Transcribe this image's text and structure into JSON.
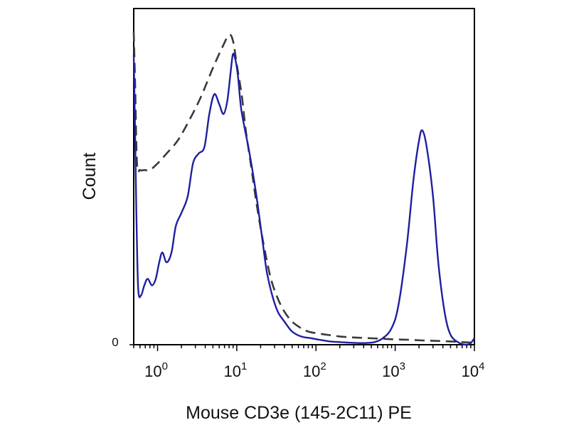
{
  "chart_data": {
    "type": "line",
    "title": "",
    "xlabel": "Mouse CD3e (145-2C11) PE",
    "ylabel": "Count",
    "x_scale": "log",
    "xlim": [
      0.5,
      10000
    ],
    "ylim": [
      0,
      1
    ],
    "grid": false,
    "legend": "none",
    "x_ticks": [
      {
        "value": 1,
        "base": "10",
        "exponent": "0"
      },
      {
        "value": 10,
        "base": "10",
        "exponent": "1"
      },
      {
        "value": 100,
        "base": "10",
        "exponent": "2"
      },
      {
        "value": 1000,
        "base": "10",
        "exponent": "3"
      },
      {
        "value": 10000,
        "base": "10",
        "exponent": "4"
      }
    ],
    "y_ticks": [
      {
        "value": 0,
        "label": "0"
      }
    ],
    "series": [
      {
        "style": "dashed",
        "color": "#3a3a3a",
        "x": [
          0.5,
          0.52,
          0.55,
          0.6,
          0.68,
          0.8,
          1.0,
          1.3,
          1.8,
          2.5,
          3.5,
          5.0,
          6.5,
          8.0,
          9.0,
          10.0,
          11.5,
          13.0,
          15.0,
          18.0,
          22.0,
          27.0,
          33.0,
          40.0,
          50.0,
          65.0,
          80.0,
          100.0,
          140.0,
          200.0,
          300.0,
          450.0,
          700.0,
          1000.0,
          1500.0,
          2200.0,
          3000.0,
          5000.0,
          7000.0,
          10000.0
        ],
        "y": [
          0.95,
          0.8,
          0.55,
          0.53,
          0.53,
          0.53,
          0.55,
          0.58,
          0.62,
          0.68,
          0.75,
          0.84,
          0.9,
          0.94,
          0.92,
          0.85,
          0.76,
          0.65,
          0.55,
          0.42,
          0.3,
          0.2,
          0.14,
          0.1,
          0.07,
          0.05,
          0.04,
          0.035,
          0.03,
          0.025,
          0.022,
          0.02,
          0.018,
          0.016,
          0.015,
          0.013,
          0.012,
          0.01,
          0.008,
          0.006
        ]
      },
      {
        "style": "solid",
        "color": "#1f1fa0",
        "x": [
          0.5,
          0.52,
          0.54,
          0.57,
          0.62,
          0.68,
          0.75,
          0.85,
          0.95,
          1.05,
          1.15,
          1.3,
          1.5,
          1.7,
          2.0,
          2.4,
          2.8,
          3.3,
          3.9,
          4.5,
          5.2,
          6.0,
          6.8,
          7.6,
          8.3,
          8.9,
          9.5,
          10.3,
          11.3,
          12.5,
          14.0,
          16.0,
          18.5,
          21.0,
          24.0,
          28.0,
          33.0,
          40.0,
          50.0,
          65.0,
          85.0,
          110.0,
          150.0,
          200.0,
          280.0,
          400.0,
          550.0,
          700.0,
          900.0,
          1100.0,
          1400.0,
          1700.0,
          2000.0,
          2200.0,
          2500.0,
          3000.0,
          3500.0,
          4200.0,
          5000.0,
          6500.0,
          8000.0,
          9000.0,
          10000.0
        ],
        "y": [
          0.88,
          0.65,
          0.4,
          0.17,
          0.15,
          0.18,
          0.2,
          0.18,
          0.2,
          0.25,
          0.28,
          0.25,
          0.28,
          0.36,
          0.4,
          0.45,
          0.55,
          0.58,
          0.6,
          0.7,
          0.76,
          0.73,
          0.7,
          0.74,
          0.82,
          0.88,
          0.87,
          0.82,
          0.72,
          0.66,
          0.6,
          0.52,
          0.42,
          0.32,
          0.22,
          0.15,
          0.1,
          0.07,
          0.04,
          0.025,
          0.02,
          0.015,
          0.01,
          0.008,
          0.006,
          0.005,
          0.008,
          0.02,
          0.05,
          0.12,
          0.3,
          0.5,
          0.62,
          0.65,
          0.6,
          0.45,
          0.25,
          0.1,
          0.03,
          0.005,
          0.0,
          0.005,
          0.02
        ]
      }
    ]
  }
}
